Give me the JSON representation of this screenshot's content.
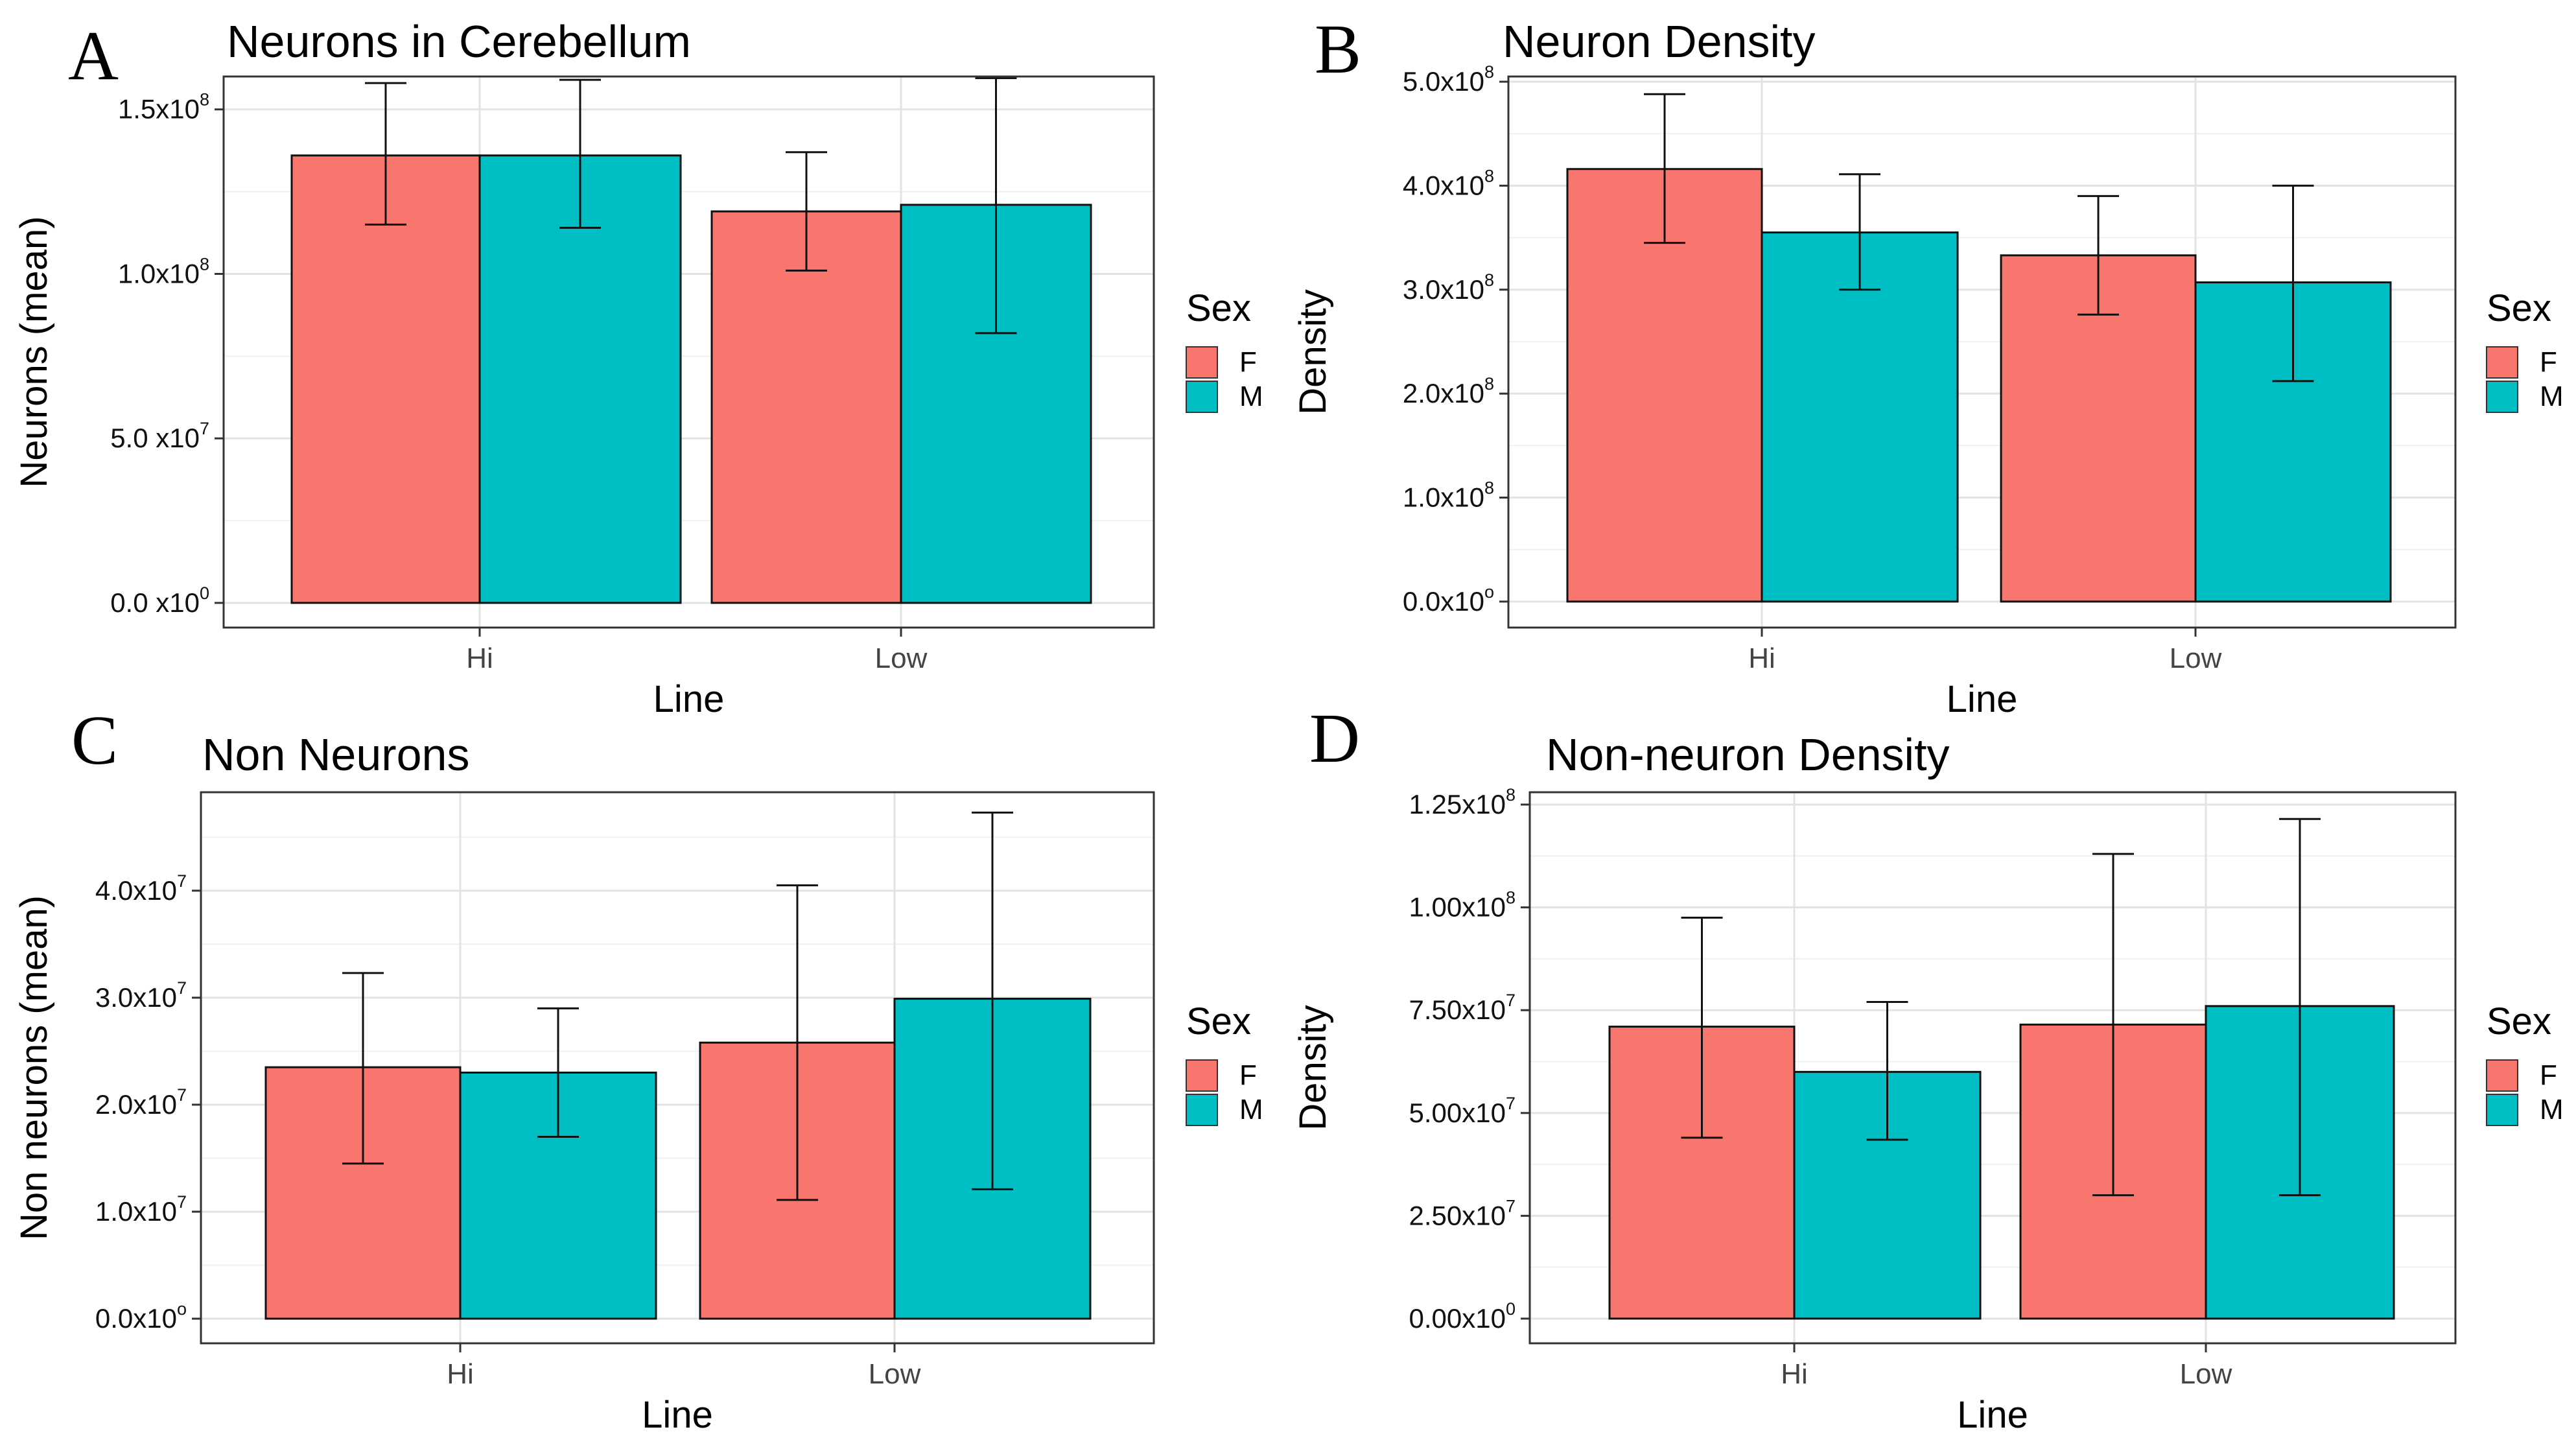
{
  "legend": {
    "title": "Sex",
    "entries": [
      {
        "key": "F",
        "label": "F",
        "color": "#F8766D"
      },
      {
        "key": "M",
        "label": "M",
        "color": "#00BFC4"
      }
    ]
  },
  "chart_data": [
    {
      "panel": "A",
      "type": "bar",
      "title": "Neurons in Cerebellum",
      "xlabel": "Line",
      "ylabel": "Neurons (mean)",
      "categories": [
        "Hi",
        "Low"
      ],
      "ylim": [
        -7500000,
        160000000
      ],
      "yticks": [
        {
          "value": 0,
          "mant": "0.0 x10",
          "exp": "0"
        },
        {
          "value": 50000000,
          "mant": "5.0 x10",
          "exp": "7"
        },
        {
          "value": 100000000,
          "mant": "1.0x10",
          "exp": "8"
        },
        {
          "value": 150000000,
          "mant": "1.5x10",
          "exp": "8"
        }
      ],
      "series": [
        {
          "name": "F",
          "values": [
            136000000,
            119000000
          ],
          "err_low": [
            115000000,
            101000000
          ],
          "err_high": [
            158000000,
            137000000
          ]
        },
        {
          "name": "M",
          "values": [
            136000000,
            121000000
          ],
          "err_low": [
            114000000,
            82000000
          ],
          "err_high": [
            159000000,
            159500000
          ]
        }
      ],
      "grid": true,
      "legend_position": "right"
    },
    {
      "panel": "B",
      "type": "bar",
      "title": "Neuron Density",
      "xlabel": "Line",
      "ylabel": "Density",
      "categories": [
        "Hi",
        "Low"
      ],
      "ylim": [
        -25000000,
        505000000
      ],
      "yticks": [
        {
          "value": 0,
          "mant": "0.0x10",
          "exp": "o"
        },
        {
          "value": 100000000,
          "mant": "1.0x10",
          "exp": "8"
        },
        {
          "value": 200000000,
          "mant": "2.0x10",
          "exp": "8"
        },
        {
          "value": 300000000,
          "mant": "3.0x10",
          "exp": "8"
        },
        {
          "value": 400000000,
          "mant": "4.0x10",
          "exp": "8"
        },
        {
          "value": 500000000,
          "mant": "5.0x10",
          "exp": "8"
        }
      ],
      "series": [
        {
          "name": "F",
          "values": [
            416000000,
            333000000
          ],
          "err_low": [
            345000000,
            276000000
          ],
          "err_high": [
            488000000,
            390000000
          ]
        },
        {
          "name": "M",
          "values": [
            355000000,
            307000000
          ],
          "err_low": [
            300000000,
            212000000
          ],
          "err_high": [
            411000000,
            400000000
          ]
        }
      ],
      "grid": true,
      "legend_position": "right"
    },
    {
      "panel": "C",
      "type": "bar",
      "title": "Non Neurons",
      "xlabel": "Line",
      "ylabel": "Non neurons (mean)",
      "categories": [
        "Hi",
        "Low"
      ],
      "ylim": [
        -2300000,
        49200000
      ],
      "yticks": [
        {
          "value": 0,
          "mant": "0.0x10",
          "exp": "o"
        },
        {
          "value": 10000000,
          "mant": "1.0x10",
          "exp": "7"
        },
        {
          "value": 20000000,
          "mant": "2.0x10",
          "exp": "7"
        },
        {
          "value": 30000000,
          "mant": "3.0x10",
          "exp": "7"
        },
        {
          "value": 40000000,
          "mant": "4.0x10",
          "exp": "7"
        }
      ],
      "series": [
        {
          "name": "F",
          "values": [
            23500000,
            25800000
          ],
          "err_low": [
            14500000,
            11100000
          ],
          "err_high": [
            32300000,
            40500000
          ]
        },
        {
          "name": "M",
          "values": [
            23000000,
            29900000
          ],
          "err_low": [
            17000000,
            12100000
          ],
          "err_high": [
            29000000,
            47300000
          ]
        }
      ],
      "grid": true,
      "legend_position": "right"
    },
    {
      "panel": "D",
      "type": "bar",
      "title": "Non-neuron Density",
      "xlabel": "Line",
      "ylabel": "Density",
      "categories": [
        "Hi",
        "Low"
      ],
      "ylim": [
        -6000000,
        128000000
      ],
      "yticks": [
        {
          "value": 0,
          "mant": "0.00x10",
          "exp": "0"
        },
        {
          "value": 25000000,
          "mant": "2.50x10",
          "exp": "7"
        },
        {
          "value": 50000000,
          "mant": "5.00x10",
          "exp": "7"
        },
        {
          "value": 75000000,
          "mant": "7.50x10",
          "exp": "7"
        },
        {
          "value": 100000000,
          "mant": "1.00x10",
          "exp": "8"
        },
        {
          "value": 125000000,
          "mant": "1.25x10",
          "exp": "8"
        }
      ],
      "series": [
        {
          "name": "F",
          "values": [
            71000000,
            71500000
          ],
          "err_low": [
            44000000,
            30000000
          ],
          "err_high": [
            97500000,
            113000000
          ]
        },
        {
          "name": "M",
          "values": [
            60000000,
            76000000
          ],
          "err_low": [
            43500000,
            30000000
          ],
          "err_high": [
            77000000,
            121500000
          ]
        }
      ],
      "grid": true,
      "legend_position": "right"
    }
  ]
}
